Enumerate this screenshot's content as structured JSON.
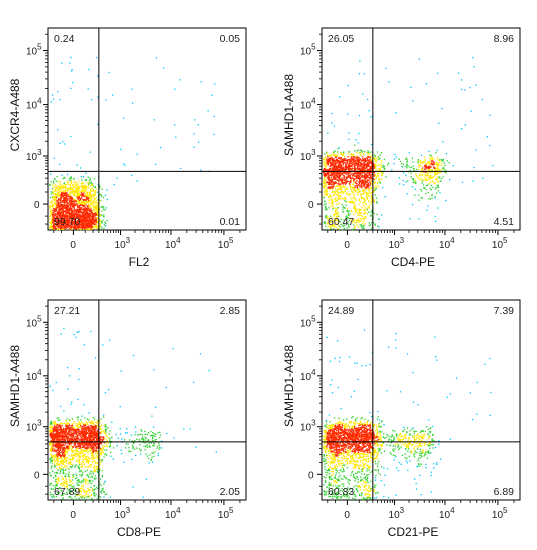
{
  "chart_data": [
    {
      "type": "scatter",
      "subtype": "flow-cytometry-density-dot-plot",
      "xlabel": "FL2",
      "ylabel": "CXCR4-A488",
      "x_ticks": [
        "0",
        "10^3",
        "10^4",
        "10^5"
      ],
      "y_ticks": [
        "0",
        "10^3",
        "10^4",
        "10^5"
      ],
      "scale": "biexponential",
      "gate": {
        "x": 300,
        "y": 450
      },
      "quadrants": {
        "upper_left": "0.24",
        "upper_right": "0.05",
        "lower_left": "99.70",
        "lower_right": "0.01"
      },
      "populations": [
        {
          "x_center": 0,
          "y_center": -80,
          "x_spread": 150,
          "y_spread": 150,
          "percent": 99.7
        }
      ]
    },
    {
      "type": "scatter",
      "subtype": "flow-cytometry-density-dot-plot",
      "xlabel": "CD4-PE",
      "ylabel": "SAMHD1-A488",
      "x_ticks": [
        "0",
        "10^3",
        "10^4",
        "10^5"
      ],
      "y_ticks": [
        "0",
        "10^3",
        "10^4",
        "10^5"
      ],
      "scale": "biexponential",
      "gate": {
        "x": 300,
        "y": 450
      },
      "quadrants": {
        "upper_left": "26.05",
        "upper_right": "8.96",
        "lower_left": "60.47",
        "lower_right": "4.51"
      },
      "populations": [
        {
          "x_center": 0,
          "y_center": 350,
          "x_spread": 190,
          "y_spread": 380,
          "percent": 86.5
        },
        {
          "x_center": 4500,
          "y_center": 500,
          "x_spread": 2500,
          "y_spread": 250,
          "percent": 13.5
        }
      ]
    },
    {
      "type": "scatter",
      "subtype": "flow-cytometry-density-dot-plot",
      "xlabel": "CD8-PE",
      "ylabel": "SAMHD1-A488",
      "x_ticks": [
        "0",
        "10^3",
        "10^4",
        "10^5"
      ],
      "y_ticks": [
        "0",
        "10^3",
        "10^4",
        "10^5"
      ],
      "scale": "biexponential",
      "gate": {
        "x": 300,
        "y": 450
      },
      "quadrants": {
        "upper_left": "27.21",
        "upper_right": "2.85",
        "lower_left": "67.89",
        "lower_right": "2.05"
      },
      "populations": [
        {
          "x_center": 0,
          "y_center": 400,
          "x_spread": 190,
          "y_spread": 420,
          "percent": 95.1
        },
        {
          "x_center": 2500,
          "y_center": 450,
          "x_spread": 2000,
          "y_spread": 250,
          "percent": 4.9
        }
      ]
    },
    {
      "type": "scatter",
      "subtype": "flow-cytometry-density-dot-plot",
      "xlabel": "CD21-PE",
      "ylabel": "SAMHD1-A488",
      "x_ticks": [
        "0",
        "10^3",
        "10^4",
        "10^5"
      ],
      "y_ticks": [
        "0",
        "10^3",
        "10^4",
        "10^5"
      ],
      "scale": "biexponential",
      "gate": {
        "x": 300,
        "y": 450
      },
      "quadrants": {
        "upper_left": "24.89",
        "upper_right": "7.39",
        "lower_left": "60.83",
        "lower_right": "6.89"
      },
      "populations": [
        {
          "x_center": 0,
          "y_center": 400,
          "x_spread": 190,
          "y_spread": 420,
          "percent": 85.7
        },
        {
          "x_center": 2000,
          "y_center": 450,
          "x_spread": 2000,
          "y_spread": 250,
          "percent": 14.3
        }
      ]
    }
  ],
  "colors": {
    "density_low": "#0a28ff",
    "density_mid_low": "#00c8ff",
    "density_mid": "#2dd22d",
    "density_mid_high": "#ffe600",
    "density_high": "#ff2a00",
    "gate_line": "#000000",
    "axis": "#000000"
  }
}
